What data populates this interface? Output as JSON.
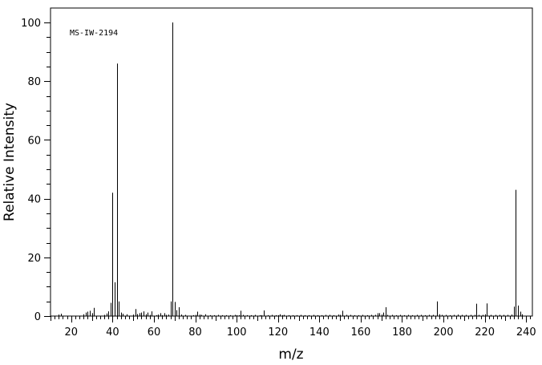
{
  "chart_data": {
    "type": "bar",
    "annotation": "MS-IW-2194",
    "xlabel": "m/z",
    "ylabel": "Relative Intensity",
    "xlim": [
      10,
      243
    ],
    "ylim": [
      0,
      100
    ],
    "xticks": [
      20,
      40,
      60,
      80,
      100,
      120,
      140,
      160,
      180,
      200,
      220,
      240
    ],
    "yticks": [
      0,
      20,
      40,
      60,
      80,
      100
    ],
    "grid": false,
    "bar_color": "#000000",
    "x": [
      14,
      15,
      26,
      27,
      28,
      29,
      30,
      31,
      36,
      37,
      38,
      39,
      40,
      41,
      42,
      43,
      44,
      45,
      47,
      50,
      51,
      52,
      53,
      54,
      55,
      56,
      57,
      58,
      59,
      61,
      62,
      63,
      64,
      65,
      66,
      67,
      68,
      69,
      70,
      71,
      72,
      73,
      75,
      79,
      80,
      81,
      82,
      83,
      85,
      87,
      89,
      91,
      93,
      95,
      97,
      99,
      100,
      101,
      102,
      103,
      105,
      107,
      109,
      111,
      112,
      113,
      115,
      117,
      119,
      120,
      121,
      122,
      123,
      125,
      127,
      129,
      131,
      133,
      135,
      137,
      139,
      141,
      143,
      145,
      147,
      149,
      150,
      151,
      153,
      155,
      157,
      159,
      161,
      163,
      165,
      167,
      168,
      169,
      170,
      171,
      172,
      173,
      175,
      177,
      179,
      181,
      183,
      185,
      187,
      189,
      191,
      193,
      195,
      197,
      198,
      199,
      201,
      203,
      205,
      207,
      209,
      211,
      213,
      215,
      216,
      217,
      219,
      220,
      221,
      223,
      225,
      227,
      229,
      231,
      233,
      234,
      235,
      236,
      237,
      238
    ],
    "values": [
      0.5,
      0.8,
      0.6,
      1.2,
      1.5,
      1.8,
      1.0,
      2.8,
      0.4,
      0.9,
      1.6,
      4.5,
      42.0,
      11.5,
      86.0,
      5.0,
      1.2,
      0.8,
      0.6,
      0.5,
      2.4,
      0.7,
      1.0,
      1.2,
      1.6,
      0.6,
      1.2,
      0.4,
      1.6,
      0.3,
      0.5,
      1.0,
      0.3,
      1.0,
      0.4,
      0.5,
      5.0,
      100.0,
      4.8,
      2.0,
      3.0,
      0.5,
      0.4,
      0.3,
      0.4,
      1.5,
      0.5,
      0.4,
      0.6,
      0.3,
      0.3,
      0.4,
      0.3,
      0.3,
      0.3,
      0.4,
      0.3,
      0.3,
      1.8,
      0.4,
      0.3,
      0.3,
      0.4,
      0.3,
      0.3,
      1.9,
      0.3,
      0.4,
      0.3,
      0.3,
      0.6,
      0.3,
      0.4,
      0.3,
      0.3,
      0.3,
      0.4,
      0.3,
      0.3,
      0.4,
      0.3,
      0.3,
      0.4,
      0.4,
      0.3,
      0.5,
      0.4,
      1.8,
      0.4,
      0.4,
      0.3,
      0.3,
      0.4,
      0.3,
      0.4,
      0.4,
      1.0,
      1.0,
      0.5,
      1.2,
      3.0,
      0.4,
      0.4,
      0.3,
      0.4,
      0.3,
      0.4,
      0.3,
      0.4,
      0.4,
      0.3,
      0.4,
      0.4,
      5.0,
      0.6,
      0.4,
      0.4,
      0.3,
      0.4,
      0.5,
      0.4,
      0.4,
      0.4,
      0.4,
      4.2,
      0.4,
      0.4,
      0.6,
      4.3,
      0.4,
      0.4,
      0.4,
      0.4,
      0.4,
      0.5,
      3.2,
      43.0,
      3.6,
      1.5,
      0.6
    ]
  }
}
